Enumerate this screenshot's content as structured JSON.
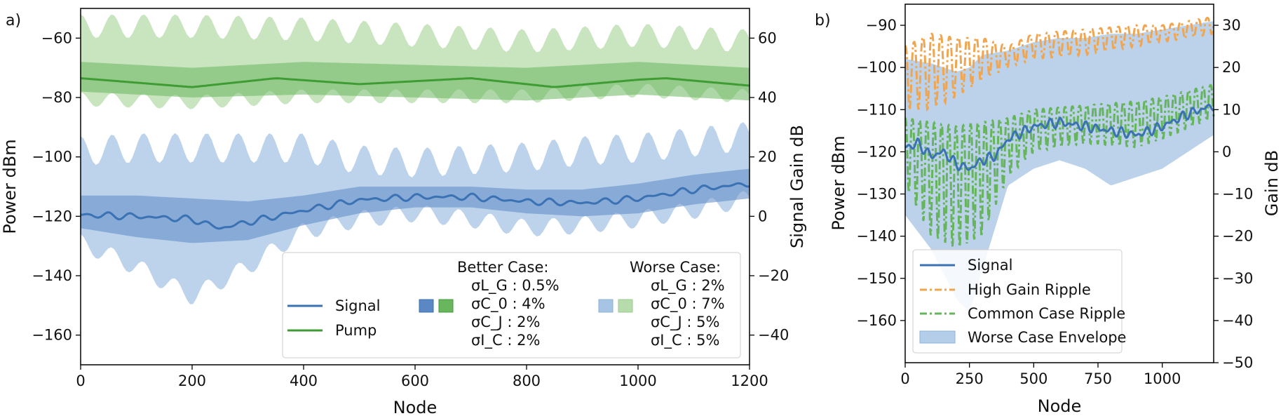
{
  "chart_data": [
    {
      "panel_label": "a)",
      "type": "line",
      "title": "",
      "xlabel": "Node",
      "ylabel": "Power dBm",
      "y2label": "Signal Gain dB",
      "xlim": [
        0,
        1200
      ],
      "ylim": [
        -170,
        -50
      ],
      "y2lim": [
        -50,
        70
      ],
      "xticks": [
        "0",
        "200",
        "400",
        "600",
        "800",
        "1000",
        "1200"
      ],
      "yticks": [
        "−160",
        "−140",
        "−120",
        "−100",
        "−80",
        "−60"
      ],
      "y2ticks": [
        "−40",
        "−20",
        "0",
        "20",
        "40",
        "60"
      ],
      "colors": {
        "signal": "#3a72b4",
        "pump": "#3f9c35",
        "signal_dark": "#5b88c5",
        "signal_light": "#a6c4e4",
        "pump_dark": "#6ab65f",
        "pump_light": "#b5dcaa"
      },
      "series": [
        {
          "name": "Signal",
          "x": [
            0,
            100,
            200,
            250,
            300,
            400,
            500,
            600,
            700,
            800,
            900,
            1000,
            1100,
            1200
          ],
          "values": [
            -119.5,
            -120,
            -121,
            -124,
            -122,
            -118,
            -114.5,
            -113.5,
            -113.5,
            -115,
            -115.5,
            -114,
            -111,
            -109
          ]
        },
        {
          "name": "Pump",
          "x": [
            0,
            100,
            200,
            350,
            500,
            700,
            850,
            1000,
            1050,
            1200
          ],
          "values": [
            -73.5,
            -75,
            -76.5,
            -73.5,
            -75.5,
            -73.5,
            -76.5,
            -74,
            -73.5,
            -76
          ]
        },
        {
          "name": "Better Case Signal band",
          "x": [
            0,
            100,
            200,
            300,
            400,
            500,
            600,
            700,
            800,
            900,
            1000,
            1100,
            1200
          ],
          "upper": [
            -113,
            -113,
            -114,
            -115,
            -113,
            -110,
            -110,
            -110,
            -111,
            -111,
            -109,
            -106,
            -104
          ],
          "lower": [
            -124,
            -127,
            -129,
            -128,
            -123,
            -119,
            -117,
            -117,
            -119,
            -120,
            -119,
            -116,
            -114
          ]
        },
        {
          "name": "Worse Case Signal band",
          "x": [
            0,
            100,
            200,
            300,
            400,
            500,
            600,
            700,
            800,
            900,
            1000,
            1100,
            1200
          ],
          "upper": [
            -93,
            -92,
            -92,
            -92,
            -92,
            -96,
            -97,
            -96,
            -95,
            -93,
            -92,
            -90,
            -88
          ],
          "lower": [
            -132,
            -140,
            -150,
            -140,
            -128,
            -124,
            -122,
            -124,
            -127,
            -126,
            -124,
            -121,
            -117
          ]
        },
        {
          "name": "Better Case Pump band",
          "x": [
            0,
            200,
            400,
            600,
            800,
            1000,
            1200
          ],
          "upper": [
            -68,
            -70,
            -68,
            -69,
            -70,
            -68,
            -70
          ],
          "lower": [
            -78,
            -80,
            -79,
            -80,
            -81,
            -79,
            -81
          ]
        },
        {
          "name": "Worse Case Pump band",
          "x": [
            0,
            200,
            400,
            600,
            800,
            1000,
            1200
          ],
          "upper": [
            -52,
            -52,
            -53,
            -55,
            -57,
            -55,
            -57
          ],
          "lower": [
            -83,
            -84,
            -82,
            -82,
            -82,
            -80,
            -82
          ]
        }
      ],
      "legend": {
        "placement": "lower-right",
        "signal": "Signal",
        "pump": "Pump",
        "better_title": "Better Case:",
        "better_params": [
          "σL_G : 0.5%",
          "σC_0 : 4%",
          "σC_J : 2%",
          "σI_C : 2%"
        ],
        "worse_title": "Worse Case:",
        "worse_params": [
          "σL_G : 2%",
          "σC_0 : 7%",
          "σC_J : 5%",
          "σI_C : 5%"
        ]
      }
    },
    {
      "panel_label": "b)",
      "type": "line",
      "title": "",
      "xlabel": "Node",
      "ylabel": "Power dBm",
      "y2label": "Gain dB",
      "xlim": [
        0,
        1200
      ],
      "ylim": [
        -170,
        -85
      ],
      "y2lim": [
        -50,
        35
      ],
      "xticks": [
        "0",
        "250",
        "500",
        "750",
        "1000"
      ],
      "yticks": [
        "−160",
        "−150",
        "−140",
        "−130",
        "−120",
        "−110",
        "−100",
        "−90"
      ],
      "y2ticks": [
        "−50",
        "−40",
        "−30",
        "−20",
        "−10",
        "0",
        "10",
        "20",
        "30"
      ],
      "colors": {
        "signal": "#3a72b4",
        "high": "#f0a550",
        "common": "#66b45c",
        "envelope": "#b4cde8"
      },
      "series": [
        {
          "name": "Signal",
          "x": [
            0,
            50,
            100,
            150,
            200,
            250,
            300,
            350,
            400,
            500,
            600,
            700,
            800,
            900,
            1000,
            1100,
            1200
          ],
          "values": [
            -119,
            -118,
            -121,
            -120,
            -123,
            -124,
            -122,
            -121,
            -117,
            -114,
            -113,
            -114,
            -115,
            -116,
            -114,
            -111,
            -109
          ]
        },
        {
          "name": "High Gain Ripple",
          "x": [
            0,
            100,
            200,
            300,
            400,
            500,
            700,
            900,
            1000,
            1200
          ],
          "upper": [
            -95,
            -92,
            -93,
            -93,
            -95,
            -92,
            -91,
            -90,
            -90,
            -88
          ],
          "lower": [
            -110,
            -110,
            -107,
            -103,
            -100,
            -98,
            -97,
            -95,
            -94,
            -92
          ]
        },
        {
          "name": "Common Case Ripple",
          "x": [
            0,
            100,
            200,
            300,
            400,
            500,
            700,
            900,
            1000,
            1200
          ],
          "upper": [
            -112,
            -113,
            -114,
            -113,
            -112,
            -110,
            -109,
            -108,
            -107,
            -104
          ],
          "lower": [
            -128,
            -140,
            -143,
            -140,
            -126,
            -120,
            -118,
            -119,
            -117,
            -112
          ]
        },
        {
          "name": "Worse Case Envelope",
          "x": [
            0,
            100,
            200,
            250,
            300,
            400,
            500,
            600,
            700,
            800,
            900,
            1000,
            1100,
            1200
          ],
          "upper": [
            -98,
            -99,
            -101,
            -100,
            -97,
            -96,
            -94,
            -93,
            -93,
            -92,
            -92,
            -91,
            -90,
            -89
          ],
          "lower": [
            -135,
            -143,
            -155,
            -158,
            -148,
            -128,
            -124,
            -122,
            -124,
            -128,
            -126,
            -124,
            -120,
            -116
          ]
        }
      ],
      "legend": {
        "placement": "lower-left",
        "items": [
          "Signal",
          "High Gain Ripple",
          "Common Case Ripple",
          "Worse Case Envelope"
        ]
      }
    }
  ]
}
